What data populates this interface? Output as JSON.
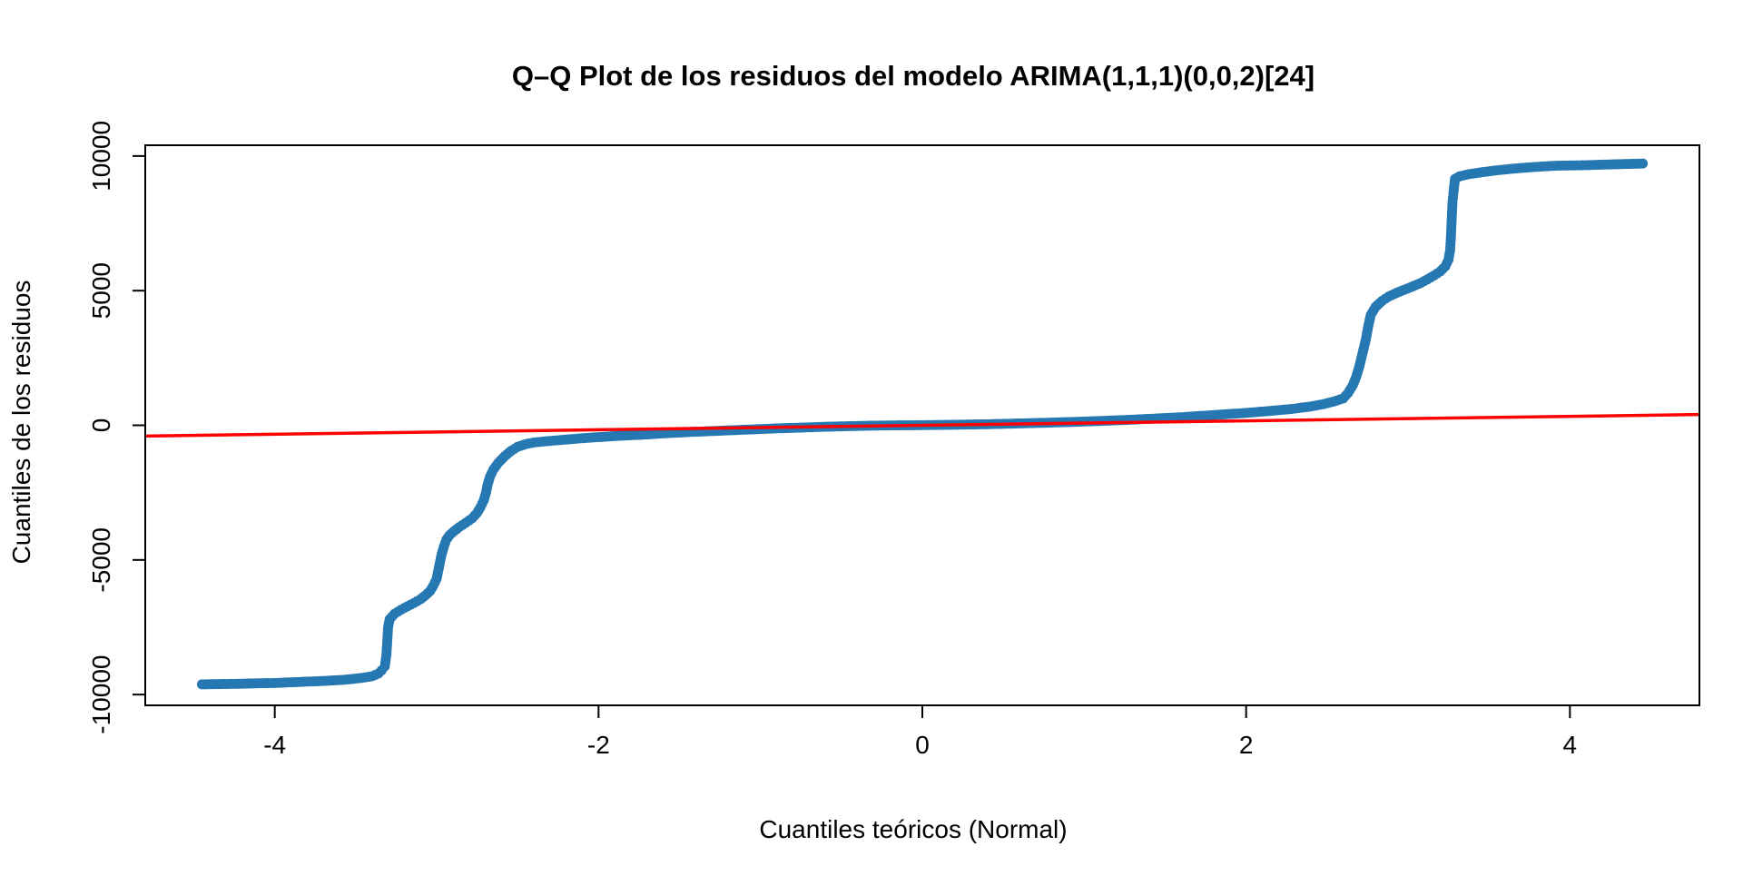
{
  "chart_data": {
    "type": "scatter",
    "title": "Q–Q Plot de los residuos del modelo ARIMA(1,1,1)(0,0,2)[24]",
    "xlabel": "Cuantiles teóricos (Normal)",
    "ylabel": "Cuantiles de los residuos",
    "xlim": [
      -4.8,
      4.8
    ],
    "ylim": [
      -10400,
      10400
    ],
    "x_ticks": [
      -4,
      -2,
      0,
      2,
      4
    ],
    "x_tick_labels": [
      "-4",
      "-2",
      "0",
      "2",
      "4"
    ],
    "y_ticks": [
      -10000,
      -5000,
      0,
      5000,
      10000
    ],
    "y_tick_labels": [
      "-10000",
      "-5000",
      "0",
      "5000",
      "10000"
    ],
    "grid": false,
    "legend": "none",
    "series": [
      {
        "points": [
          [
            -4.45,
            -9620
          ],
          [
            -4.22,
            -9600
          ],
          [
            -4.1,
            -9580
          ],
          [
            -4.0,
            -9570
          ],
          [
            -3.94,
            -9555
          ],
          [
            -3.88,
            -9540
          ],
          [
            -3.82,
            -9525
          ],
          [
            -3.76,
            -9510
          ],
          [
            -3.7,
            -9495
          ],
          [
            -3.64,
            -9475
          ],
          [
            -3.58,
            -9455
          ],
          [
            -3.52,
            -9420
          ],
          [
            -3.46,
            -9380
          ],
          [
            -3.4,
            -9320
          ],
          [
            -3.36,
            -9220
          ],
          [
            -3.34,
            -9100
          ],
          [
            -3.32,
            -8950
          ],
          [
            -3.31,
            -8500
          ],
          [
            -3.3,
            -7500
          ],
          [
            -3.29,
            -7200
          ],
          [
            -3.26,
            -7000
          ],
          [
            -3.22,
            -6850
          ],
          [
            -3.18,
            -6720
          ],
          [
            -3.14,
            -6600
          ],
          [
            -3.1,
            -6460
          ],
          [
            -3.07,
            -6320
          ],
          [
            -3.04,
            -6150
          ],
          [
            -3.02,
            -5950
          ],
          [
            -3.0,
            -5700
          ],
          [
            -2.99,
            -5400
          ],
          [
            -2.98,
            -5100
          ],
          [
            -2.97,
            -4800
          ],
          [
            -2.955,
            -4500
          ],
          [
            -2.94,
            -4250
          ],
          [
            -2.92,
            -4080
          ],
          [
            -2.89,
            -3920
          ],
          [
            -2.86,
            -3780
          ],
          [
            -2.82,
            -3620
          ],
          [
            -2.78,
            -3450
          ],
          [
            -2.75,
            -3250
          ],
          [
            -2.73,
            -3050
          ],
          [
            -2.71,
            -2800
          ],
          [
            -2.695,
            -2500
          ],
          [
            -2.685,
            -2200
          ],
          [
            -2.67,
            -1900
          ],
          [
            -2.65,
            -1650
          ],
          [
            -2.62,
            -1400
          ],
          [
            -2.58,
            -1150
          ],
          [
            -2.54,
            -950
          ],
          [
            -2.5,
            -800
          ],
          [
            -2.45,
            -700
          ],
          [
            -2.4,
            -640
          ],
          [
            -2.3,
            -580
          ],
          [
            -2.2,
            -530
          ],
          [
            -2.1,
            -480
          ],
          [
            -2.0,
            -440
          ],
          [
            -1.9,
            -400
          ],
          [
            -1.8,
            -370
          ],
          [
            -1.7,
            -340
          ],
          [
            -1.6,
            -300
          ],
          [
            -1.5,
            -270
          ],
          [
            -1.4,
            -240
          ],
          [
            -1.3,
            -215
          ],
          [
            -1.2,
            -190
          ],
          [
            -1.1,
            -165
          ],
          [
            -1.0,
            -140
          ],
          [
            -0.9,
            -115
          ],
          [
            -0.8,
            -95
          ],
          [
            -0.7,
            -75
          ],
          [
            -0.6,
            -55
          ],
          [
            -0.5,
            -40
          ],
          [
            -0.4,
            -25
          ],
          [
            -0.3,
            -12
          ],
          [
            -0.2,
            -5
          ],
          [
            -0.1,
            0
          ],
          [
            0.0,
            5
          ],
          [
            0.1,
            12
          ],
          [
            0.2,
            20
          ],
          [
            0.3,
            30
          ],
          [
            0.4,
            40
          ],
          [
            0.5,
            55
          ],
          [
            0.6,
            70
          ],
          [
            0.7,
            85
          ],
          [
            0.8,
            100
          ],
          [
            0.9,
            120
          ],
          [
            1.0,
            140
          ],
          [
            1.1,
            160
          ],
          [
            1.2,
            185
          ],
          [
            1.3,
            210
          ],
          [
            1.4,
            240
          ],
          [
            1.5,
            270
          ],
          [
            1.6,
            300
          ],
          [
            1.7,
            340
          ],
          [
            1.8,
            380
          ],
          [
            1.9,
            420
          ],
          [
            2.0,
            460
          ],
          [
            2.1,
            510
          ],
          [
            2.2,
            560
          ],
          [
            2.3,
            620
          ],
          [
            2.4,
            700
          ],
          [
            2.48,
            790
          ],
          [
            2.54,
            880
          ],
          [
            2.6,
            1000
          ],
          [
            2.63,
            1200
          ],
          [
            2.66,
            1500
          ],
          [
            2.68,
            1800
          ],
          [
            2.7,
            2200
          ],
          [
            2.72,
            2700
          ],
          [
            2.74,
            3200
          ],
          [
            2.755,
            3700
          ],
          [
            2.77,
            4100
          ],
          [
            2.8,
            4400
          ],
          [
            2.84,
            4620
          ],
          [
            2.88,
            4780
          ],
          [
            2.93,
            4920
          ],
          [
            2.98,
            5040
          ],
          [
            3.03,
            5160
          ],
          [
            3.08,
            5290
          ],
          [
            3.12,
            5420
          ],
          [
            3.16,
            5560
          ],
          [
            3.2,
            5720
          ],
          [
            3.23,
            5900
          ],
          [
            3.25,
            6150
          ],
          [
            3.26,
            6500
          ],
          [
            3.265,
            7000
          ],
          [
            3.27,
            7700
          ],
          [
            3.275,
            8300
          ],
          [
            3.28,
            8600
          ],
          [
            3.29,
            9150
          ],
          [
            3.32,
            9250
          ],
          [
            3.38,
            9330
          ],
          [
            3.46,
            9400
          ],
          [
            3.55,
            9470
          ],
          [
            3.65,
            9530
          ],
          [
            3.75,
            9580
          ],
          [
            3.84,
            9615
          ],
          [
            3.92,
            9640
          ],
          [
            4.0,
            9650
          ],
          [
            4.1,
            9660
          ],
          [
            4.2,
            9680
          ],
          [
            4.45,
            9720
          ]
        ]
      }
    ],
    "reference_line": {
      "intercept": 0,
      "slope": 83
    },
    "colors": {
      "points": "#2678b2",
      "reference_line": "#ff0000",
      "frame": "#000000"
    }
  }
}
